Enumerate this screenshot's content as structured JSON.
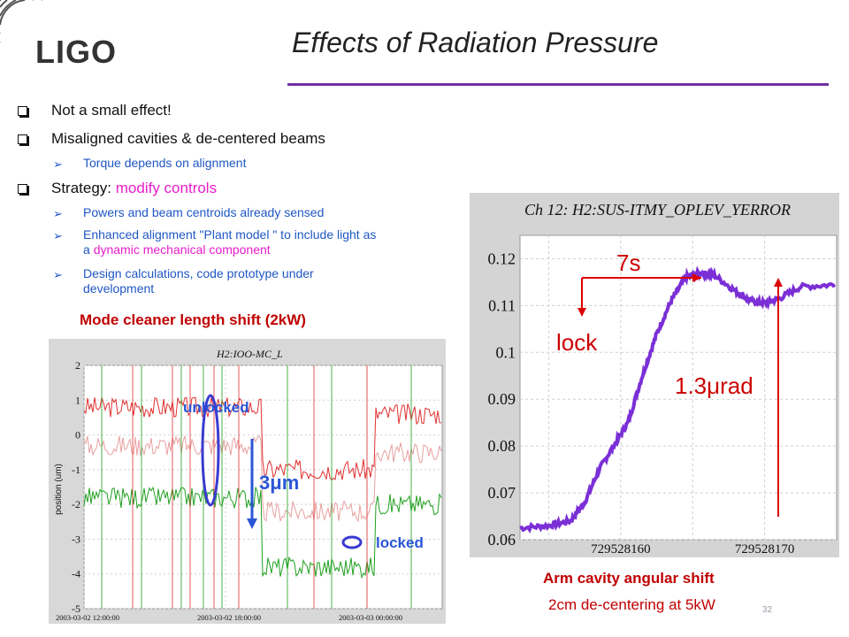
{
  "header": {
    "logo": "LIGO",
    "title": "Effects of Radiation Pressure"
  },
  "bullets": [
    {
      "text": "Not a small effect!"
    },
    {
      "text": "Misaligned cavities & de-centered beams",
      "sub": [
        "Torque depends on alignment"
      ]
    },
    {
      "text": "Strategy: ",
      "highlight": "modify controls",
      "sub": [
        "Powers and beam centroids already sensed",
        "Enhanced alignment \"Plant model \" to include light as",
        "a dynamic mechanical component",
        "Design calculations, code prototype under",
        "development"
      ]
    }
  ],
  "left_figure": {
    "caption": "Mode cleaner length shift (2kW)",
    "chart_title": "H2:IOO-MC_L",
    "ylabel": "position (um)",
    "yticks": [
      "2",
      "1",
      "0",
      "-1",
      "-2",
      "-3",
      "-4",
      "-5"
    ],
    "xticks": [
      "2003-03-02 12:00:00",
      "2003-03-02 18:00:00",
      "2003-03-03 00:00:00"
    ],
    "annotations": {
      "unlocked": "unlocked",
      "shift": "3μm",
      "locked": "locked"
    }
  },
  "right_figure": {
    "chart_title": "Ch 12: H2:SUS-ITMY_OPLEV_YERROR",
    "yticks": [
      "0.12",
      "0.11",
      "0.1",
      "0.09",
      "0.08",
      "0.07",
      "0.06"
    ],
    "xticks": [
      "729528160",
      "729528170"
    ],
    "annotations": {
      "time": "7s",
      "lock": "lock",
      "shift": "1.3μrad"
    },
    "caption": "Arm cavity angular shift",
    "subcaption": "2cm de-centering at 5kW"
  },
  "footer": {
    "slide_number": "32"
  },
  "colors": {
    "accent": "#7030a0",
    "bullet_sub": "#1f57c3",
    "highlight": "#e81cc9",
    "caption": "#c00000",
    "trace": "#7b2fd6"
  },
  "chart_data": [
    {
      "type": "line",
      "title": "Ch 12: H2:SUS-ITMY_OPLEV_YERROR",
      "xlabel": "",
      "ylabel": "",
      "ylim": [
        0.06,
        0.125
      ],
      "xlim": [
        729528153,
        729528175
      ],
      "x": [
        729528153.0,
        729528155.0,
        729528156.5,
        729528157.5,
        729528158.5,
        729528159.5,
        729528160.5,
        729528161.5,
        729528162.5,
        729528163.5,
        729528164.5,
        729528165.5,
        729528166.5,
        729528168.0,
        729528169.0,
        729528170.0,
        729528171.0,
        729528172.5,
        729528175.0
      ],
      "y": [
        0.0625,
        0.063,
        0.064,
        0.068,
        0.075,
        0.08,
        0.085,
        0.095,
        0.104,
        0.111,
        0.116,
        0.117,
        0.1165,
        0.113,
        0.111,
        0.1105,
        0.1115,
        0.114,
        0.1145
      ],
      "series": [
        {
          "name": "",
          "color": "#7b2fd6"
        }
      ],
      "grid": true
    },
    {
      "type": "line",
      "title": "H2:IOO-MC_L",
      "ylabel": "position (um)",
      "ylim": [
        -5,
        2
      ],
      "grid": true
    }
  ]
}
